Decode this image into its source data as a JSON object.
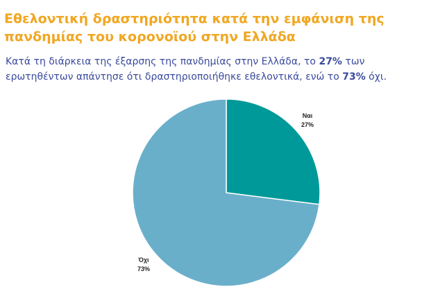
{
  "title": "Εθελοντική δραστηριότητα κατά την εμφάνιση της πανδημίας του κορονοϊού στην Ελλάδα",
  "subtitle": {
    "part1": "Κατά τη διάρκεια της έξαρσης της πανδημίας στην Ελλάδα, το ",
    "yes_pct": "27%",
    "part2": " των ερωτηθέντων απάντησε ότι δραστηριοποιήθηκε εθελοντικά, ενώ το ",
    "no_pct": "73%",
    "part3": " όχι."
  },
  "colors": {
    "title": "#f0a722",
    "subtitle": "#3a4a9c",
    "yes": "#009999",
    "no": "#6aafca"
  },
  "chart_data": {
    "type": "pie",
    "slices": [
      {
        "label": "Ναι",
        "value": 27,
        "value_label": "27%",
        "color": "#009999"
      },
      {
        "label": "Όχι",
        "value": 73,
        "value_label": "73%",
        "color": "#6aafca"
      }
    ]
  }
}
